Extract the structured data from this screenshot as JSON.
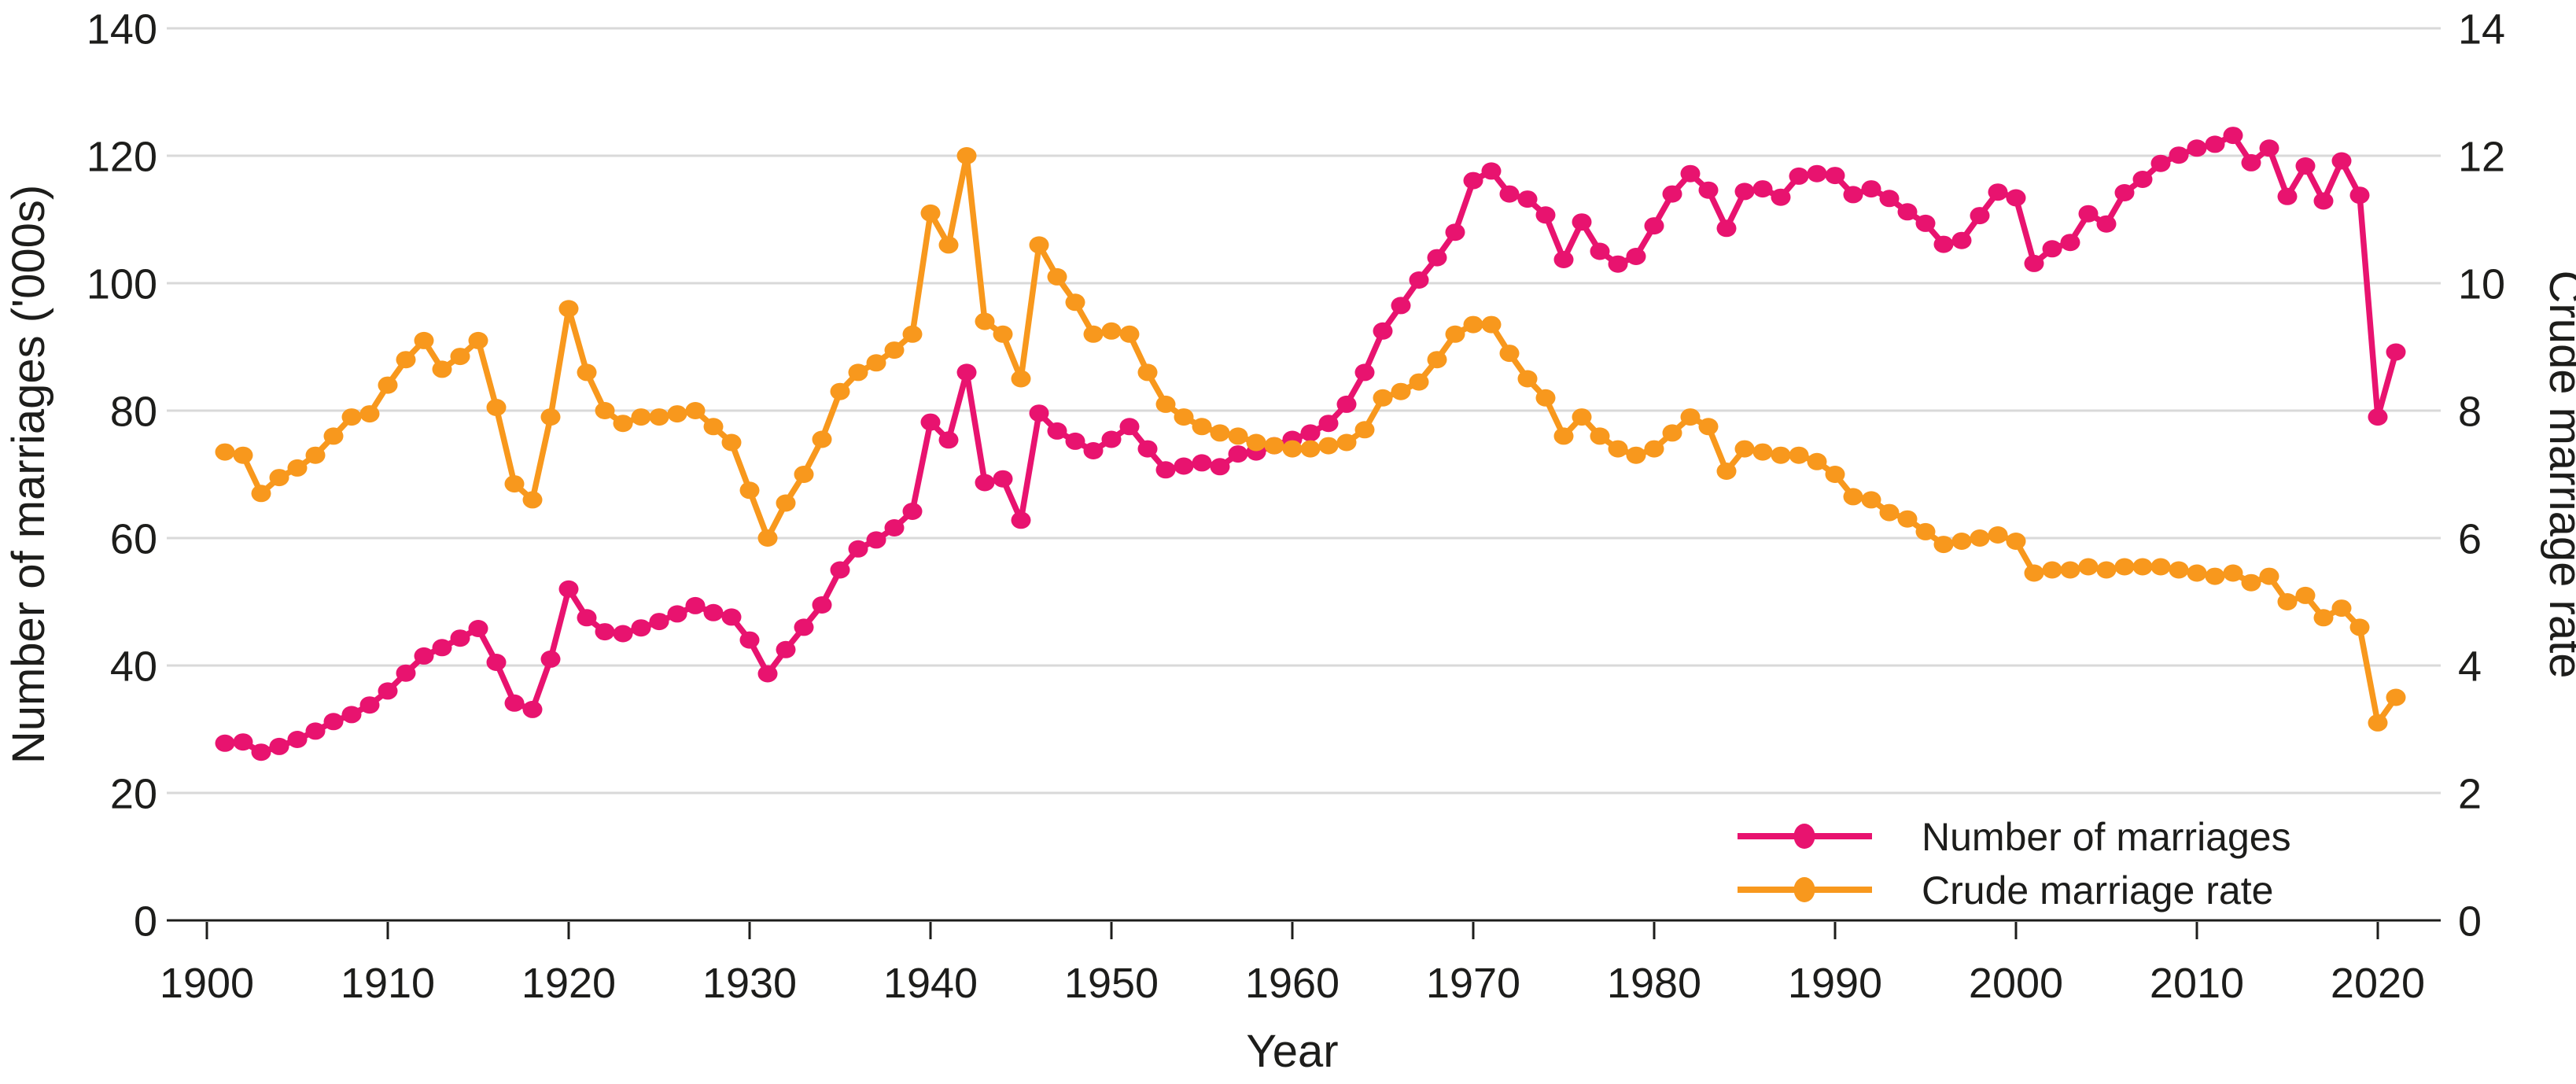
{
  "chart_data": {
    "type": "line",
    "title": "",
    "xlabel": "Year",
    "ylabel_left": "Number of marriages ('000s)",
    "ylabel_right": "Crude marriage rate",
    "x_ticks": [
      1900,
      1910,
      1920,
      1930,
      1940,
      1950,
      1960,
      1970,
      1980,
      1990,
      2000,
      2010,
      2020
    ],
    "y_left_ticks": [
      0,
      20,
      40,
      60,
      80,
      100,
      120,
      140
    ],
    "y_right_ticks": [
      0,
      2,
      4,
      6,
      8,
      10,
      12,
      14
    ],
    "y_left_range": [
      0,
      140
    ],
    "y_right_range": [
      0,
      14
    ],
    "x_range": [
      1900,
      2021
    ],
    "grid": "horizontal-only",
    "legend_position": "inside-bottom-right",
    "years": [
      1901,
      1902,
      1903,
      1904,
      1905,
      1906,
      1907,
      1908,
      1909,
      1910,
      1911,
      1912,
      1913,
      1914,
      1915,
      1916,
      1917,
      1918,
      1919,
      1920,
      1921,
      1922,
      1923,
      1924,
      1925,
      1926,
      1927,
      1928,
      1929,
      1930,
      1931,
      1932,
      1933,
      1934,
      1935,
      1936,
      1937,
      1938,
      1939,
      1940,
      1941,
      1942,
      1943,
      1944,
      1945,
      1946,
      1947,
      1948,
      1949,
      1950,
      1951,
      1952,
      1953,
      1954,
      1955,
      1956,
      1957,
      1958,
      1959,
      1960,
      1961,
      1962,
      1963,
      1964,
      1965,
      1966,
      1967,
      1968,
      1969,
      1970,
      1971,
      1972,
      1973,
      1974,
      1975,
      1976,
      1977,
      1978,
      1979,
      1980,
      1981,
      1982,
      1983,
      1984,
      1985,
      1986,
      1987,
      1988,
      1989,
      1990,
      1991,
      1992,
      1993,
      1994,
      1995,
      1996,
      1997,
      1998,
      1999,
      2000,
      2001,
      2002,
      2003,
      2004,
      2005,
      2006,
      2007,
      2008,
      2009,
      2010,
      2011,
      2012,
      2013,
      2014,
      2015,
      2016,
      2017,
      2018,
      2019,
      2020,
      2021
    ],
    "series": [
      {
        "name": "Number of marriages",
        "axis": "left",
        "units": "thousands",
        "color": "#e8136f",
        "values": [
          27.8,
          28.0,
          26.4,
          27.3,
          28.4,
          29.7,
          31.2,
          32.3,
          33.8,
          36.0,
          38.8,
          41.5,
          42.8,
          44.3,
          45.8,
          40.5,
          34.1,
          33.1,
          41.0,
          52.0,
          47.5,
          45.3,
          45.0,
          45.9,
          46.9,
          48.1,
          49.4,
          48.3,
          47.6,
          44.0,
          38.7,
          42.5,
          46.0,
          49.5,
          55.0,
          58.3,
          59.7,
          61.6,
          64.2,
          78.2,
          75.4,
          86.0,
          68.7,
          69.3,
          62.8,
          79.6,
          76.8,
          75.2,
          73.7,
          75.5,
          77.5,
          74.0,
          70.7,
          71.3,
          71.8,
          71.2,
          73.2,
          73.5,
          74.5,
          75.5,
          76.5,
          78.0,
          81.0,
          86.0,
          92.5,
          96.5,
          100.5,
          104.0,
          108.0,
          116.1,
          117.6,
          114.0,
          113.2,
          110.7,
          103.7,
          109.6,
          105.0,
          103.0,
          104.2,
          109.0,
          114.0,
          117.2,
          114.6,
          108.6,
          114.4,
          114.8,
          113.5,
          116.8,
          117.2,
          116.9,
          113.9,
          114.8,
          113.3,
          111.2,
          109.4,
          106.1,
          106.7,
          110.6,
          114.3,
          113.4,
          103.1,
          105.4,
          106.4,
          110.9,
          109.3,
          114.2,
          116.3,
          118.8,
          120.1,
          121.2,
          121.8,
          123.2,
          118.9,
          121.2,
          113.6,
          118.4,
          112.9,
          119.2,
          113.8,
          79.0,
          89.2
        ]
      },
      {
        "name": "Crude marriage rate",
        "axis": "right",
        "units": "per 1,000 population",
        "color": "#f8981d",
        "values": [
          7.35,
          7.3,
          6.7,
          6.95,
          7.1,
          7.3,
          7.6,
          7.9,
          7.95,
          8.4,
          8.8,
          9.1,
          8.65,
          8.85,
          9.1,
          8.05,
          6.85,
          6.6,
          7.9,
          9.6,
          8.6,
          8.0,
          7.8,
          7.9,
          7.9,
          7.95,
          8.0,
          7.75,
          7.5,
          6.75,
          6.0,
          6.55,
          7.0,
          7.55,
          8.3,
          8.6,
          8.75,
          8.95,
          9.2,
          11.1,
          10.6,
          12.0,
          9.4,
          9.2,
          8.5,
          10.6,
          10.1,
          9.7,
          9.2,
          9.25,
          9.2,
          8.6,
          8.1,
          7.9,
          7.75,
          7.65,
          7.6,
          7.5,
          7.45,
          7.4,
          7.4,
          7.45,
          7.5,
          7.7,
          8.2,
          8.3,
          8.45,
          8.8,
          9.2,
          9.35,
          9.35,
          8.9,
          8.5,
          8.2,
          7.6,
          7.9,
          7.6,
          7.4,
          7.3,
          7.4,
          7.65,
          7.9,
          7.75,
          7.05,
          7.4,
          7.35,
          7.3,
          7.3,
          7.2,
          7.0,
          6.65,
          6.6,
          6.4,
          6.3,
          6.1,
          5.9,
          5.95,
          6.0,
          6.05,
          5.95,
          5.45,
          5.5,
          5.5,
          5.55,
          5.5,
          5.55,
          5.55,
          5.55,
          5.5,
          5.45,
          5.4,
          5.45,
          5.3,
          5.4,
          5.0,
          5.1,
          4.75,
          4.9,
          4.6,
          3.1,
          3.5
        ]
      }
    ],
    "legend": [
      "Number of marriages",
      "Crude marriage rate"
    ]
  },
  "colors": {
    "series_marriages": "#e8136f",
    "series_rate": "#f8981d",
    "gridline": "#d9d9d9",
    "axis_text": "#1d1d1b",
    "background": "#ffffff"
  }
}
